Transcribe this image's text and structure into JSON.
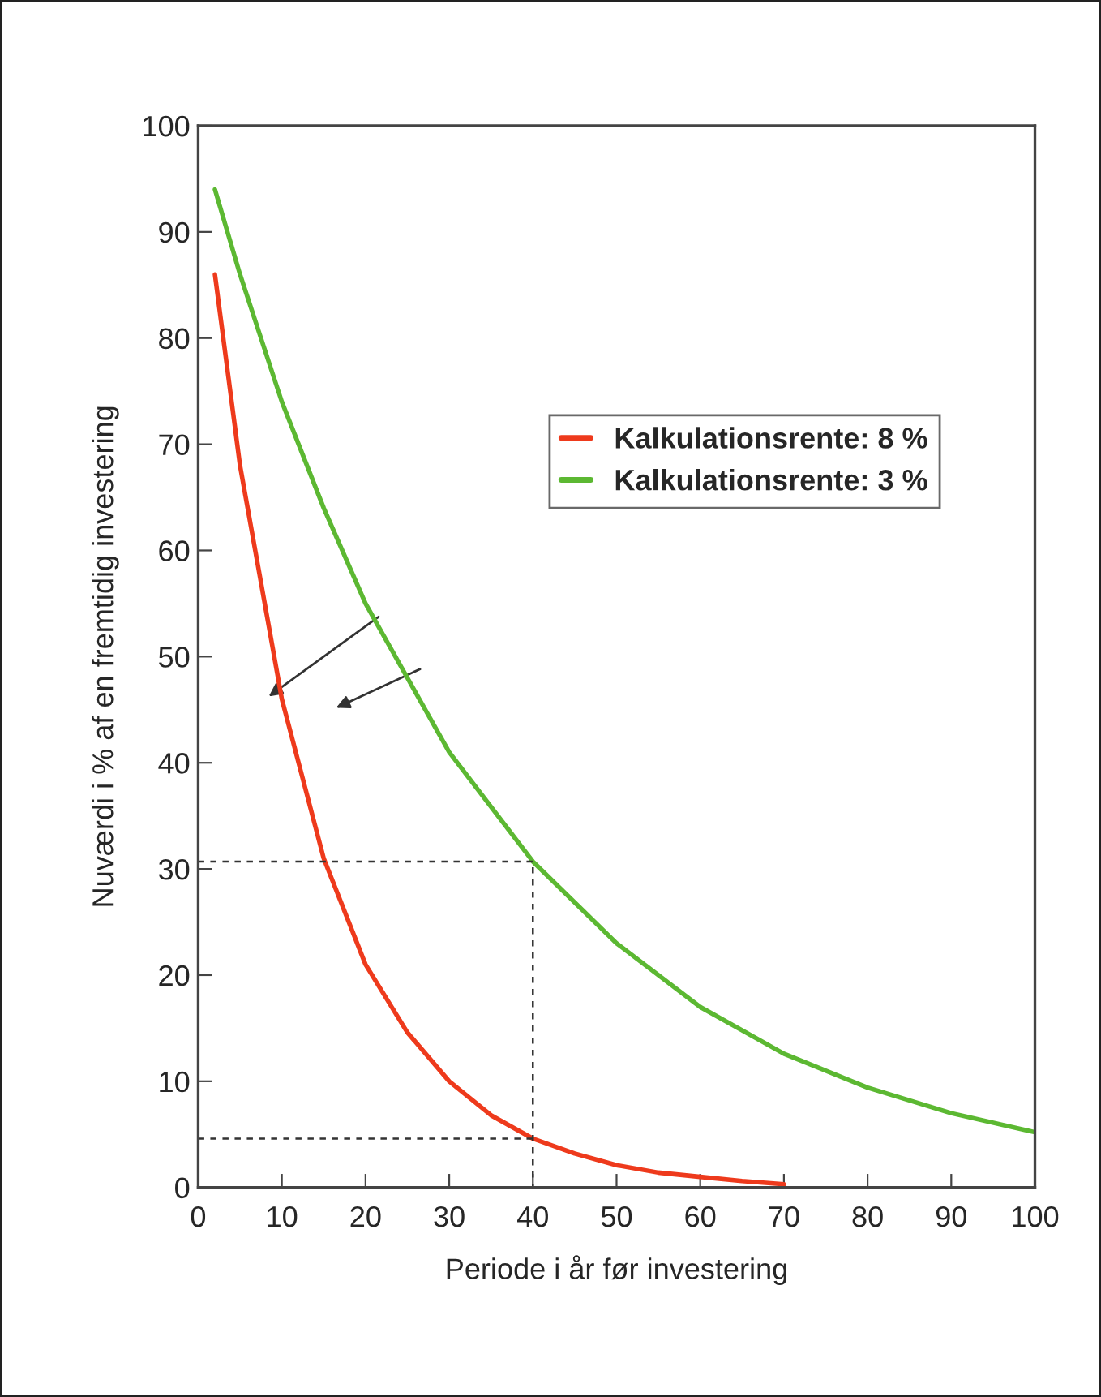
{
  "chart_data": {
    "type": "line",
    "xlabel": "Periode i år før investering",
    "ylabel": "Nuværdi i % af en fremtidig investering",
    "series": [
      {
        "name": "Kalkulationsrente: 8 %",
        "color": "#ee3a1c",
        "x": [
          2,
          5,
          10,
          15,
          20,
          25,
          30,
          35,
          40,
          45,
          50,
          55,
          60,
          65,
          70
        ],
        "values": [
          86,
          68,
          46,
          31,
          21,
          14.6,
          10,
          6.8,
          4.6,
          3.2,
          2.1,
          1.4,
          1.0,
          0.6,
          0.3
        ]
      },
      {
        "name": "Kalkulationsrente: 3 %",
        "color": "#5cb832",
        "x": [
          2,
          5,
          10,
          15,
          20,
          30,
          40,
          50,
          60,
          70,
          80,
          90,
          100
        ],
        "values": [
          94,
          86,
          74,
          64,
          55,
          41,
          30.7,
          23,
          17,
          12.6,
          9.4,
          7,
          5.2
        ]
      },
      {
        "color": "#333333",
        "line_style": "dashed",
        "x": [
          0,
          40,
          40
        ],
        "values": [
          30.7,
          30.7,
          0
        ]
      },
      {
        "color": "#333333",
        "line_style": "dashed",
        "x": [
          0,
          40
        ],
        "values": [
          4.6,
          4.6
        ]
      }
    ],
    "xlim": [
      0,
      100
    ],
    "ylim": [
      0,
      100
    ],
    "xticks": [
      0,
      10,
      20,
      30,
      40,
      50,
      60,
      70,
      80,
      90,
      100
    ],
    "yticks": [
      0,
      10,
      20,
      30,
      40,
      50,
      60,
      70,
      80,
      90,
      100
    ],
    "grid": false,
    "legend": "top right",
    "marker": "none",
    "line_style": "solid"
  }
}
